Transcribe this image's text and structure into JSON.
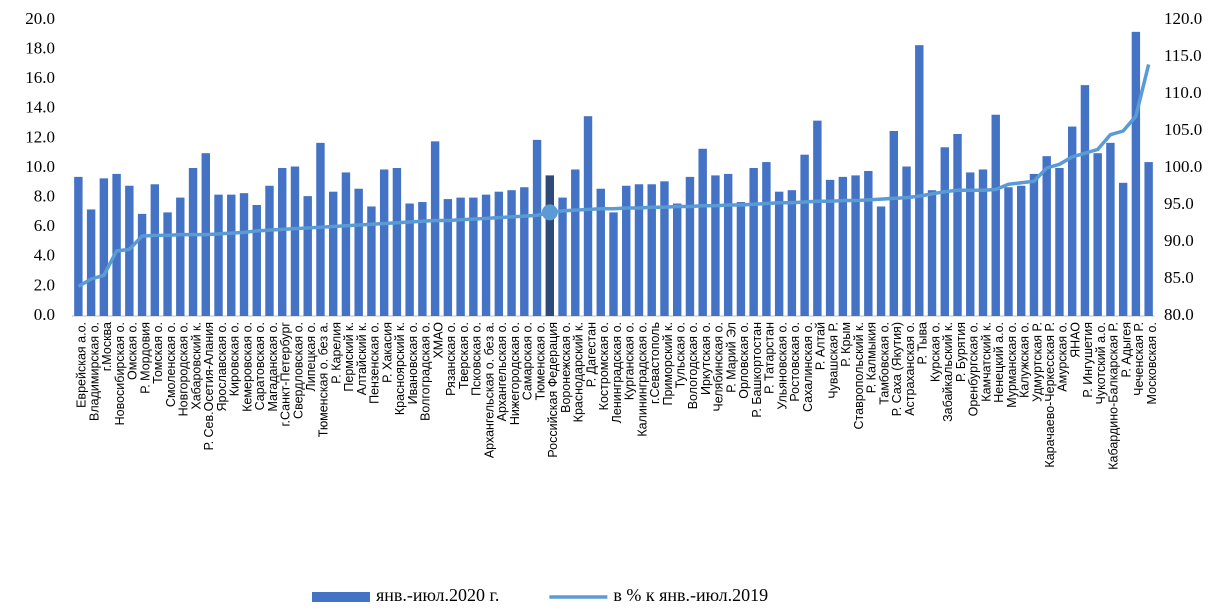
{
  "chart_data": {
    "type": "bar_line",
    "categories": [
      "Еврейская а.о.",
      "Владимирская о.",
      "г.Москва",
      "Новосибирская о.",
      "Омская о.",
      "Р. Мордовия",
      "Томская о.",
      "Смоленская о.",
      "Новгородская о.",
      "Хабаровский к.",
      "Р. Сев.Осетия-Алания",
      "Ярославская о.",
      "Кировская о.",
      "Кемеровская о.",
      "Саратовская о.",
      "Магаданская о.",
      "г.Санкт-Петербург",
      "Свердловская о.",
      "Липецкая о.",
      "Тюменская о. без а.",
      "Р. Карелия",
      "Пермский к.",
      "Алтайский к.",
      "Пензенская о.",
      "Р. Хакасия",
      "Красноярский к.",
      "Ивановская о.",
      "Волгоградская о.",
      "ХМАО",
      "Рязанская о.",
      "Тверская о.",
      "Псковская о.",
      "Архангельская о. без а.",
      "Архангельская о.",
      "Нижегородская о.",
      "Самарская о.",
      "Тюменская о.",
      "Российская Федерация",
      "Воронежская о.",
      "Краснодарский к.",
      "Р. Дагестан",
      "Костромская о.",
      "Ленинградская о.",
      "Курганская о.",
      "Калининградская о.",
      "г.Севастополь",
      "Приморский к.",
      "Тульская о.",
      "Вологодская о.",
      "Иркутская о.",
      "Челябинская о.",
      "Р. Марий Эл",
      "Орловская о.",
      "Р. Башкортостан",
      "Р. Татарстан",
      "Ульяновская о.",
      "Ростовская о.",
      "Сахалинская о.",
      "Р. Алтай",
      "Чувашская Р.",
      "Р. Крым",
      "Ставропольский к.",
      "Р. Калмыкия",
      "Тамбовская о.",
      "Р. Саха (Якутия)",
      "Астраханская о.",
      "Р. Тыва",
      "Курская о.",
      "Забайкальский к.",
      "Р. Бурятия",
      "Оренбургская о.",
      "Камчатский к.",
      "Ненецкий а.о.",
      "Мурманская о.",
      "Калужская о.",
      "Удмуртская Р.",
      "Карачаево-Черкесская Р.",
      "Амурская о.",
      "ЯНАО",
      "Р. Ингушетия",
      "Чукотский а.о.",
      "Кабардино-Балкарская Р.",
      "Р. Адыгея",
      "Чеченская Р.",
      "Московская о."
    ],
    "series": [
      {
        "name": "янв.-июл.2020 г.",
        "color": "#4472c4",
        "highlight_color": "#2e4a7a",
        "values": [
          9.4,
          7.2,
          9.3,
          9.6,
          8.8,
          6.9,
          8.9,
          7.0,
          8.0,
          10.0,
          11.0,
          8.2,
          8.2,
          8.3,
          7.5,
          8.8,
          10.0,
          10.1,
          8.1,
          11.7,
          8.4,
          9.7,
          8.6,
          7.4,
          9.9,
          10.0,
          7.6,
          7.7,
          11.8,
          7.9,
          8.0,
          8.0,
          8.2,
          8.4,
          8.5,
          8.7,
          11.9,
          9.5,
          8.0,
          9.9,
          13.5,
          8.6,
          7.0,
          8.8,
          8.9,
          8.9,
          9.1,
          7.6,
          9.4,
          11.3,
          9.5,
          9.6,
          7.7,
          10.0,
          10.4,
          8.4,
          8.5,
          10.9,
          13.2,
          9.2,
          9.4,
          9.5,
          9.8,
          7.4,
          12.5,
          10.1,
          18.3,
          8.5,
          11.4,
          12.3,
          9.7,
          9.9,
          13.6,
          8.7,
          8.8,
          9.6,
          10.8,
          10.0,
          12.8,
          15.6,
          11.0,
          11.7,
          9.0,
          19.2,
          10.4
        ]
      },
      {
        "name": "в % к янв.-июл.2019",
        "color": "#5b9bd5",
        "axis": "y2",
        "values": [
          84.0,
          85.0,
          85.5,
          88.8,
          89.0,
          90.8,
          90.9,
          90.9,
          91.0,
          91.0,
          91.0,
          91.1,
          91.2,
          91.3,
          91.5,
          91.6,
          91.7,
          91.8,
          91.9,
          92.0,
          92.1,
          92.2,
          92.3,
          92.4,
          92.5,
          92.6,
          92.7,
          92.8,
          92.9,
          92.9,
          93.0,
          93.1,
          93.2,
          93.3,
          93.4,
          93.5,
          93.6,
          94.0,
          94.2,
          94.3,
          94.4,
          94.5,
          94.5,
          94.6,
          94.6,
          94.7,
          94.7,
          94.8,
          94.8,
          94.9,
          94.9,
          95.0,
          95.0,
          95.1,
          95.2,
          95.3,
          95.3,
          95.4,
          95.5,
          95.5,
          95.6,
          95.6,
          95.7,
          95.8,
          95.9,
          96.0,
          96.2,
          96.5,
          96.8,
          97.0,
          97.0,
          97.0,
          97.1,
          97.8,
          98.0,
          98.2,
          100.0,
          100.5,
          101.5,
          102.0,
          102.5,
          104.5,
          105.0,
          107.0,
          114.0
        ]
      }
    ],
    "highlight_category": "Российская Федерация",
    "ylim": [
      0,
      20
    ],
    "yticks": [
      {
        "value": 0,
        "label": "0.0"
      },
      {
        "value": 2,
        "label": "2.0"
      },
      {
        "value": 4,
        "label": "4.0"
      },
      {
        "value": 6,
        "label": "6.0"
      },
      {
        "value": 8,
        "label": "8.0"
      },
      {
        "value": 10,
        "label": "10.0"
      },
      {
        "value": 12,
        "label": "12.0"
      },
      {
        "value": 14,
        "label": "14.0"
      },
      {
        "value": 16,
        "label": "16.0"
      },
      {
        "value": 18,
        "label": "18.0"
      },
      {
        "value": 20,
        "label": "20.0"
      }
    ],
    "y2lim": [
      80,
      120
    ],
    "y2ticks": [
      {
        "value": 80,
        "label": "80.0"
      },
      {
        "value": 85,
        "label": "85.0"
      },
      {
        "value": 90,
        "label": "90.0"
      },
      {
        "value": 95,
        "label": "95.0"
      },
      {
        "value": 100,
        "label": "100.0"
      },
      {
        "value": 105,
        "label": "105.0"
      },
      {
        "value": 110,
        "label": "110.0"
      },
      {
        "value": 115,
        "label": "115.0"
      },
      {
        "value": 120,
        "label": "120.0"
      }
    ],
    "legend": "bottom"
  }
}
